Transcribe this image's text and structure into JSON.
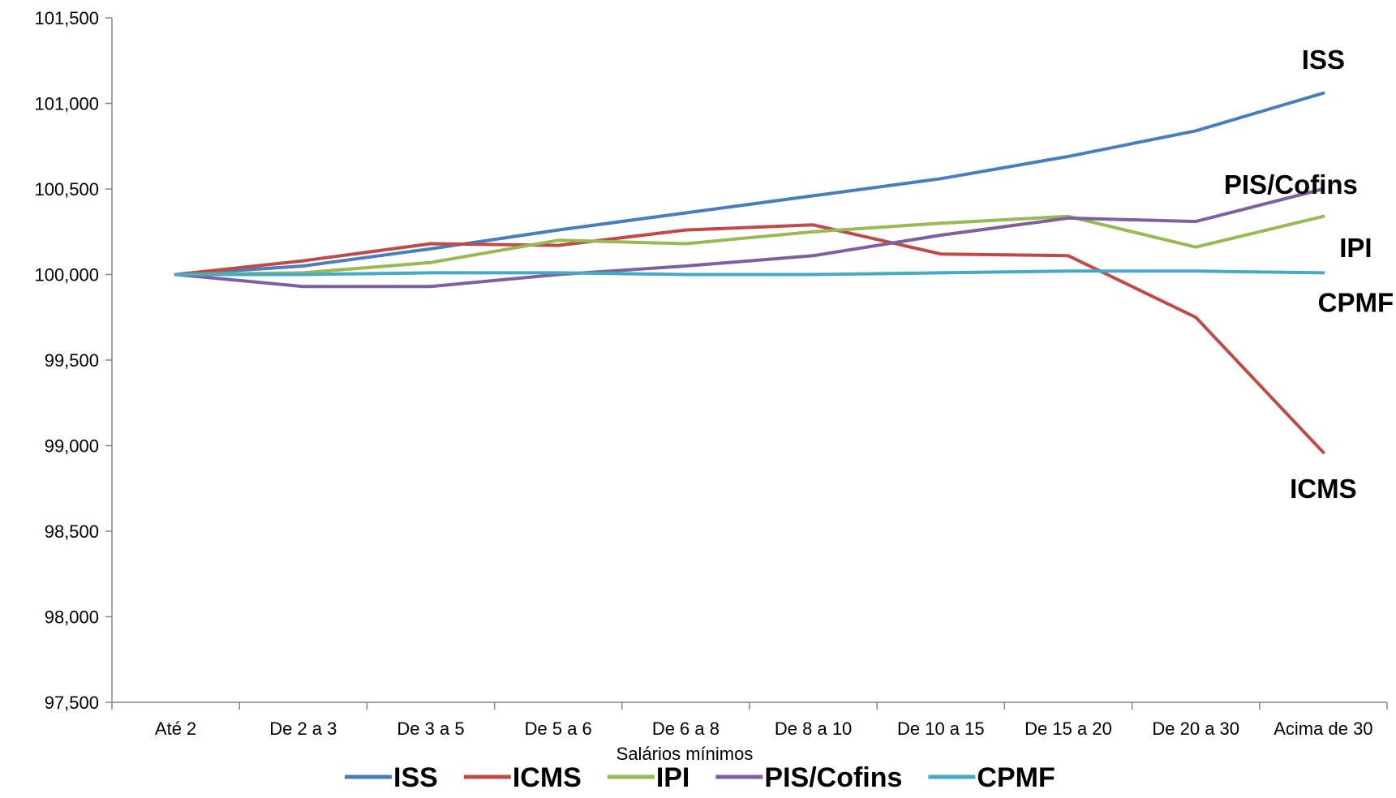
{
  "chart_data": {
    "type": "line",
    "xlabel": "Salários mínimos",
    "ylabel": "",
    "ylim": [
      97.5,
      101.5
    ],
    "yticks": [
      "97,500",
      "98,000",
      "98,500",
      "99,000",
      "99,500",
      "100,000",
      "100,500",
      "101,000",
      "101,500"
    ],
    "grid": false,
    "legend_position": "bottom",
    "categories": [
      "Até 2",
      "De 2 a 3",
      "De 3 a 5",
      "De 5 a 6",
      "De 6 a 8",
      "De 8 a 10",
      "De 10 a 15",
      "De 15 a 20",
      "De 20 a 30",
      "Acima de 30"
    ],
    "series": [
      {
        "name": "ISS",
        "color": "#4a7ebb",
        "end_label": "ISS",
        "values": [
          100.0,
          100.05,
          100.15,
          100.26,
          100.36,
          100.46,
          100.56,
          100.69,
          100.84,
          101.06
        ]
      },
      {
        "name": "ICMS",
        "color": "#be4b48",
        "end_label": "ICMS",
        "values": [
          100.0,
          100.08,
          100.18,
          100.17,
          100.26,
          100.29,
          100.12,
          100.11,
          99.75,
          98.96
        ]
      },
      {
        "name": "IPI",
        "color": "#98b954",
        "end_label": "IPI",
        "values": [
          100.0,
          100.01,
          100.07,
          100.2,
          100.18,
          100.25,
          100.3,
          100.34,
          100.16,
          100.34
        ]
      },
      {
        "name": "PIS/Cofins",
        "color": "#7d60a0",
        "end_label": "PIS/Cofins",
        "values": [
          100.0,
          99.93,
          99.93,
          100.0,
          100.05,
          100.11,
          100.23,
          100.33,
          100.31,
          100.5
        ]
      },
      {
        "name": "CPMF",
        "color": "#46aac5",
        "end_label": "CPMF",
        "values": [
          100.0,
          100.0,
          100.01,
          100.01,
          100.0,
          100.0,
          100.01,
          100.02,
          100.02,
          100.01
        ]
      }
    ]
  }
}
